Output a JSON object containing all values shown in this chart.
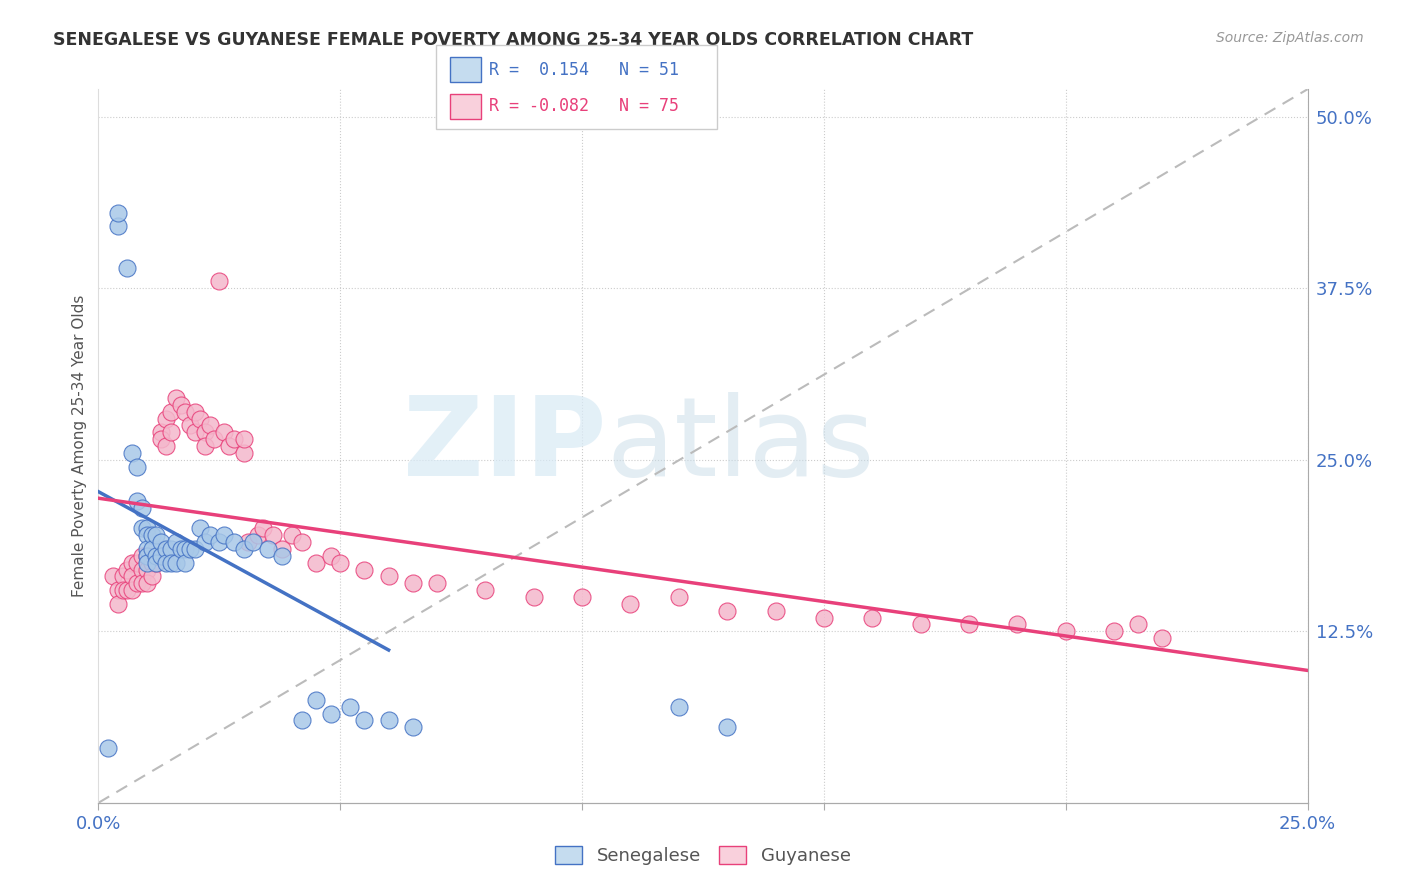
{
  "title": "SENEGALESE VS GUYANESE FEMALE POVERTY AMONG 25-34 YEAR OLDS CORRELATION CHART",
  "source": "Source: ZipAtlas.com",
  "ylabel": "Female Poverty Among 25-34 Year Olds",
  "xlim": [
    0.0,
    0.25
  ],
  "ylim": [
    0.0,
    0.52
  ],
  "ytick_labels_right": [
    "50.0%",
    "37.5%",
    "25.0%",
    "12.5%"
  ],
  "ytick_positions_right": [
    0.5,
    0.375,
    0.25,
    0.125
  ],
  "scatter_blue_color": "#A8C8E8",
  "scatter_pink_color": "#F4B8CC",
  "line_blue_color": "#4472C4",
  "line_pink_color": "#E8407A",
  "ref_line_color": "#BBBBBB",
  "legend_box_color_blue": "#C5DCEF",
  "legend_box_color_pink": "#F9D0DC",
  "background_color": "#FFFFFF",
  "senegalese_x": [
    0.002,
    0.004,
    0.004,
    0.006,
    0.007,
    0.008,
    0.008,
    0.009,
    0.009,
    0.01,
    0.01,
    0.01,
    0.01,
    0.01,
    0.011,
    0.011,
    0.012,
    0.012,
    0.012,
    0.013,
    0.013,
    0.014,
    0.014,
    0.015,
    0.015,
    0.016,
    0.016,
    0.017,
    0.018,
    0.018,
    0.019,
    0.02,
    0.021,
    0.022,
    0.023,
    0.025,
    0.026,
    0.028,
    0.03,
    0.032,
    0.035,
    0.038,
    0.042,
    0.045,
    0.048,
    0.052,
    0.055,
    0.06,
    0.065,
    0.12,
    0.13
  ],
  "senegalese_y": [
    0.04,
    0.42,
    0.43,
    0.39,
    0.255,
    0.245,
    0.22,
    0.215,
    0.2,
    0.2,
    0.195,
    0.185,
    0.18,
    0.175,
    0.195,
    0.185,
    0.195,
    0.18,
    0.175,
    0.19,
    0.18,
    0.185,
    0.175,
    0.185,
    0.175,
    0.19,
    0.175,
    0.185,
    0.185,
    0.175,
    0.185,
    0.185,
    0.2,
    0.19,
    0.195,
    0.19,
    0.195,
    0.19,
    0.185,
    0.19,
    0.185,
    0.18,
    0.06,
    0.075,
    0.065,
    0.07,
    0.06,
    0.06,
    0.055,
    0.07,
    0.055
  ],
  "guyanese_x": [
    0.003,
    0.004,
    0.004,
    0.005,
    0.005,
    0.006,
    0.006,
    0.007,
    0.007,
    0.007,
    0.008,
    0.008,
    0.009,
    0.009,
    0.009,
    0.01,
    0.01,
    0.01,
    0.011,
    0.011,
    0.012,
    0.012,
    0.013,
    0.013,
    0.014,
    0.014,
    0.015,
    0.015,
    0.016,
    0.017,
    0.018,
    0.019,
    0.02,
    0.02,
    0.021,
    0.022,
    0.022,
    0.023,
    0.024,
    0.025,
    0.026,
    0.027,
    0.028,
    0.03,
    0.03,
    0.031,
    0.033,
    0.034,
    0.036,
    0.038,
    0.04,
    0.042,
    0.045,
    0.048,
    0.05,
    0.055,
    0.06,
    0.065,
    0.07,
    0.08,
    0.09,
    0.1,
    0.11,
    0.12,
    0.13,
    0.14,
    0.15,
    0.16,
    0.17,
    0.18,
    0.19,
    0.2,
    0.21,
    0.215,
    0.22
  ],
  "guyanese_y": [
    0.165,
    0.155,
    0.145,
    0.165,
    0.155,
    0.17,
    0.155,
    0.175,
    0.165,
    0.155,
    0.175,
    0.16,
    0.18,
    0.17,
    0.16,
    0.18,
    0.17,
    0.16,
    0.175,
    0.165,
    0.185,
    0.175,
    0.27,
    0.265,
    0.28,
    0.26,
    0.285,
    0.27,
    0.295,
    0.29,
    0.285,
    0.275,
    0.285,
    0.27,
    0.28,
    0.27,
    0.26,
    0.275,
    0.265,
    0.38,
    0.27,
    0.26,
    0.265,
    0.255,
    0.265,
    0.19,
    0.195,
    0.2,
    0.195,
    0.185,
    0.195,
    0.19,
    0.175,
    0.18,
    0.175,
    0.17,
    0.165,
    0.16,
    0.16,
    0.155,
    0.15,
    0.15,
    0.145,
    0.15,
    0.14,
    0.14,
    0.135,
    0.135,
    0.13,
    0.13,
    0.13,
    0.125,
    0.125,
    0.13,
    0.12
  ]
}
